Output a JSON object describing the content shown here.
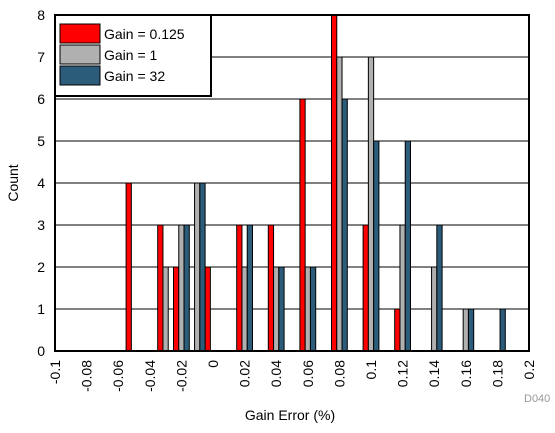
{
  "chart_data": {
    "type": "bar",
    "xlabel": "Gain Error (%)",
    "ylabel": "Count",
    "ylim": [
      0,
      8
    ],
    "xlim": [
      -0.1,
      0.2
    ],
    "xticks": [
      "-0.1",
      "-0.08",
      "-0.06",
      "-0.04",
      "-0.02",
      "0",
      "0.02",
      "0.04",
      "0.06",
      "0.08",
      "0.1",
      "0.12",
      "0.14",
      "0.16",
      "0.18",
      "0.2"
    ],
    "yticks": [
      "0",
      "1",
      "2",
      "3",
      "4",
      "5",
      "6",
      "7",
      "8"
    ],
    "grid": "horizontal",
    "legend_position": "top-left",
    "bin_centers": [
      -0.09,
      -0.08,
      -0.07,
      -0.06,
      -0.05,
      -0.04,
      -0.03,
      -0.02,
      -0.01,
      0,
      0.01,
      0.02,
      0.03,
      0.04,
      0.05,
      0.06,
      0.07,
      0.08,
      0.09,
      0.1,
      0.11,
      0.12,
      0.13,
      0.14,
      0.15,
      0.16,
      0.17,
      0.18,
      0.19
    ],
    "series": [
      {
        "name": "Gain = 0.125",
        "color": "#ff0000",
        "values": [
          0,
          0,
          0,
          0,
          4,
          0,
          3,
          2,
          0,
          2,
          0,
          3,
          0,
          3,
          0,
          6,
          0,
          8,
          0,
          3,
          0,
          1,
          0,
          0,
          0,
          0,
          0,
          0,
          0
        ]
      },
      {
        "name": "Gain = 1",
        "color": "#b0b0b0",
        "values": [
          0,
          0,
          0,
          0,
          0,
          0,
          2,
          3,
          4,
          0,
          0,
          2,
          0,
          2,
          0,
          2,
          0,
          7,
          0,
          7,
          0,
          3,
          0,
          2,
          0,
          1,
          0,
          0,
          0
        ]
      },
      {
        "name": "Gain = 32",
        "color": "#2b5d7a",
        "values": [
          0,
          0,
          0,
          0,
          0,
          0,
          0,
          3,
          4,
          0,
          0,
          3,
          0,
          2,
          0,
          2,
          0,
          6,
          0,
          5,
          0,
          5,
          0,
          3,
          0,
          1,
          0,
          1,
          0
        ]
      }
    ]
  },
  "figure_id": "D040"
}
